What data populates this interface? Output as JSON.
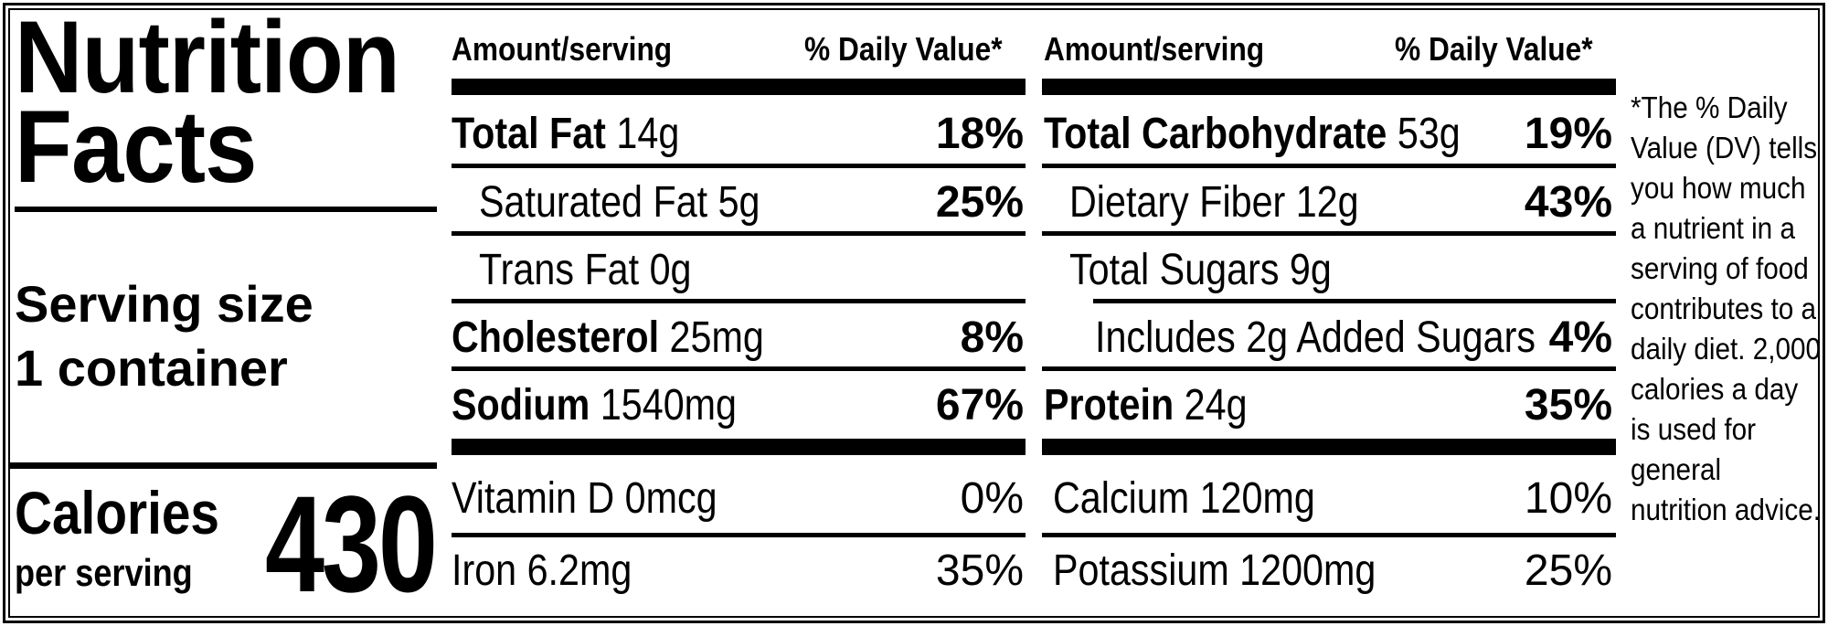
{
  "title": {
    "line1": "Nutrition",
    "line2": "Facts"
  },
  "serving": {
    "line1": "Serving size",
    "line2": "1 container"
  },
  "calories": {
    "label": "Calories",
    "sub": "per serving",
    "value": "430"
  },
  "headers": {
    "amount": "Amount/serving",
    "dv": "% Daily Value*"
  },
  "left_rows": [
    {
      "name": "Total Fat",
      "amount": "14g",
      "dv": "18%"
    },
    {
      "name": "Saturated Fat 5g",
      "dv": "25%"
    },
    {
      "name": "Trans Fat 0g"
    },
    {
      "name": "Cholesterol",
      "amount": "25mg",
      "dv": "8%"
    },
    {
      "name": "Sodium",
      "amount": "1540mg",
      "dv": "67%"
    }
  ],
  "right_rows": [
    {
      "name": "Total Carbohydrate",
      "amount": "53g",
      "dv": "19%"
    },
    {
      "name": "Dietary Fiber 12g",
      "dv": "43%"
    },
    {
      "name": "Total Sugars 9g"
    },
    {
      "name": "Includes 2g Added Sugars",
      "dv": "4%"
    },
    {
      "name": "Protein",
      "amount": "24g",
      "dv": "35%"
    }
  ],
  "vitamins_left": [
    {
      "name": "Vitamin D 0mcg",
      "dv": "0%"
    },
    {
      "name": "Iron 6.2mg",
      "dv": "35%"
    }
  ],
  "vitamins_right": [
    {
      "name": "Calcium 120mg",
      "dv": "10%"
    },
    {
      "name": "Potassium 1200mg",
      "dv": "25%"
    }
  ],
  "footnote": "*The % Daily Value (DV) tells you how much a nutrient in a serving of food contributes to a daily diet. 2,000 calories a day is used for general nutrition advice."
}
